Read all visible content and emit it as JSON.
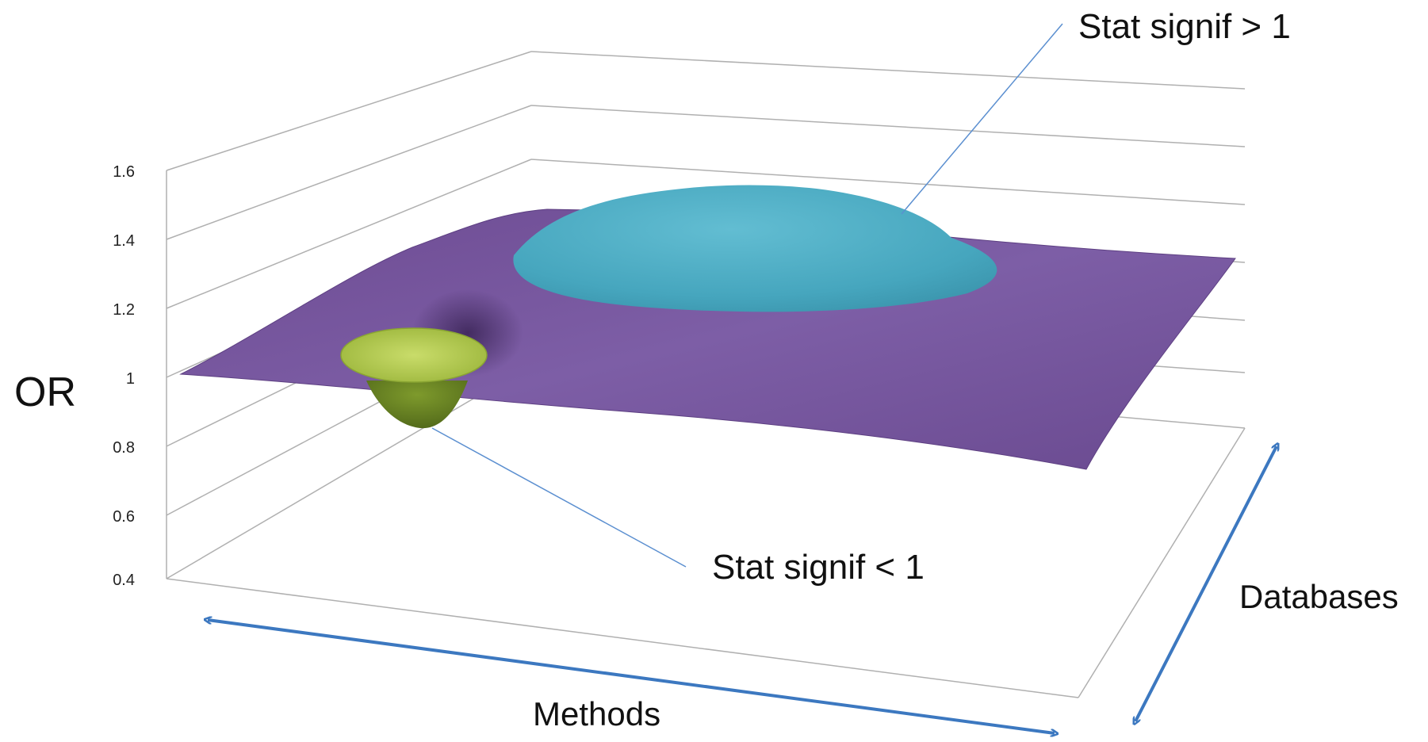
{
  "axis": {
    "ylabel": "OR",
    "xlabel": "Methods",
    "zlabel": "Databases",
    "ticks": [
      "0.4",
      "0.6",
      "0.8",
      "1",
      "1.2",
      "1.4",
      "1.6"
    ]
  },
  "annotations": {
    "high": "Stat signif > 1",
    "low": "Stat signif < 1"
  },
  "colors": {
    "surface": "#7a5aa0",
    "peak": "#4aa8bf",
    "dip": "#aac24a",
    "arrow": "#3c78c0",
    "grid": "#b0b0b0"
  }
}
